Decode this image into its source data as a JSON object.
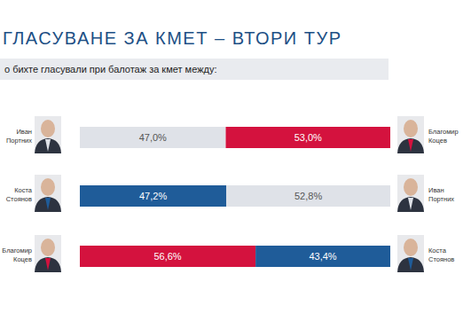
{
  "chart_data": {
    "type": "bar",
    "orientation": "horizontal",
    "stacked": true,
    "data_labels": true,
    "tick_labels": false,
    "title": "ГЛАСУВАНЕ ЗА КМЕТ – ВТОРИ ТУР",
    "subtitle": "о бихте гласували при балотаж за кмет между:",
    "xlim": [
      0,
      100
    ],
    "series": [
      {
        "labels": [
          "Иван Портних",
          "Коста Стоянов",
          "Благомир Коцев"
        ],
        "colors": [
          "#dfe2e8",
          "#1f5c99",
          "#d4123e"
        ],
        "values": [
          47.0,
          47.2,
          56.6
        ],
        "value_labels": [
          "47,0%",
          "47,2%",
          "56,6%"
        ]
      },
      {
        "labels": [
          "Благомир Коцев",
          "Иван Портних",
          "Коста Стоянов"
        ],
        "colors": [
          "#d4123e",
          "#dfe2e8",
          "#1f5c99"
        ],
        "values": [
          53.0,
          52.8,
          43.4
        ],
        "value_labels": [
          "53,0%",
          "52,8%",
          "43,4%"
        ]
      }
    ]
  }
}
